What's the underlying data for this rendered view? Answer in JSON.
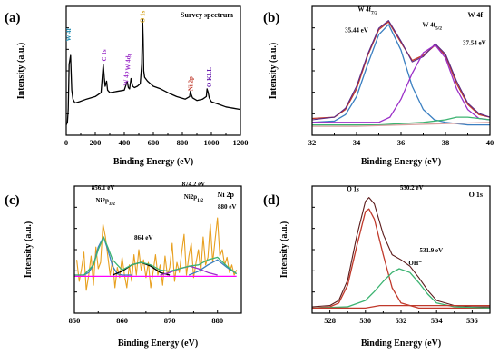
{
  "chart_data": [
    {
      "type": "line",
      "panel": "(a)",
      "title": "Survey spectrum",
      "xlabel": "Binding Energy (eV)",
      "ylabel": "Intensity (a.u.)",
      "xlim": [
        0,
        1200
      ],
      "xticks": [
        0,
        200,
        400,
        600,
        800,
        1000,
        1200
      ],
      "ylim": [
        0,
        1
      ],
      "series": [
        {
          "color": "#000000",
          "x": [
            0,
            8,
            14,
            20,
            30,
            38,
            46,
            60,
            90,
            140,
            200,
            240,
            255,
            262,
            268,
            278,
            285,
            300,
            350,
            400,
            420,
            428,
            436,
            446,
            458,
            470,
            490,
            510,
            520,
            526,
            530,
            534,
            540,
            560,
            600,
            650,
            700,
            760,
            820,
            850,
            855,
            860,
            870,
            900,
            940,
            965,
            970,
            978,
            985,
            1000,
            1050,
            1100,
            1150,
            1200
          ],
          "y": [
            0.08,
            0.1,
            0.2,
            0.55,
            0.62,
            0.35,
            0.28,
            0.25,
            0.26,
            0.28,
            0.3,
            0.33,
            0.55,
            0.45,
            0.38,
            0.42,
            0.35,
            0.33,
            0.34,
            0.35,
            0.42,
            0.37,
            0.36,
            0.44,
            0.38,
            0.37,
            0.38,
            0.4,
            0.55,
            0.9,
            0.75,
            0.5,
            0.45,
            0.42,
            0.38,
            0.36,
            0.33,
            0.3,
            0.28,
            0.3,
            0.34,
            0.32,
            0.29,
            0.27,
            0.28,
            0.3,
            0.36,
            0.33,
            0.29,
            0.26,
            0.24,
            0.22,
            0.21,
            0.2
          ]
        }
      ],
      "annotations": [
        {
          "label": "W 4f",
          "x": 30,
          "y": 0.78,
          "color": "#1f8bb0",
          "rotate": true
        },
        {
          "label": "C 1s",
          "x": 276,
          "y": 0.62,
          "color": "#9b30c8",
          "rotate": true
        },
        {
          "label": "W 4p",
          "x": 428,
          "y": 0.44,
          "color": "#9b30c8",
          "rotate": true
        },
        {
          "label": "W 4d",
          "x": 440,
          "y": 0.56,
          "color": "#9b30c8",
          "rotate": true
        },
        {
          "label": "3",
          "x": 456,
          "y": 0.62,
          "color": "#9b30c8",
          "rotate": true
        },
        {
          "label": "O 1s",
          "x": 540,
          "y": 0.92,
          "color": "#d4a017",
          "rotate": true
        },
        {
          "label": "Ni 2p",
          "x": 872,
          "y": 0.4,
          "color": "#c0392b",
          "rotate": true
        },
        {
          "label": "O KLL",
          "x": 1000,
          "y": 0.45,
          "color": "#6a1fb0",
          "rotate": true
        }
      ]
    },
    {
      "type": "line",
      "panel": "(b)",
      "title": "W 4f",
      "xlabel": "Binding Energy (eV)",
      "ylabel": "Intensity (a.u.)",
      "xlim": [
        32,
        40
      ],
      "xticks": [
        32,
        34,
        36,
        38,
        40
      ],
      "ylim": [
        0,
        1
      ],
      "series": [
        {
          "role": "fit-envelope",
          "color": "#c0392b",
          "x": [
            32,
            33,
            33.5,
            34,
            34.5,
            35,
            35.44,
            36,
            36.5,
            37,
            37.54,
            38,
            38.5,
            39,
            39.5,
            40
          ],
          "y": [
            0.13,
            0.14,
            0.2,
            0.36,
            0.62,
            0.82,
            0.88,
            0.72,
            0.58,
            0.62,
            0.7,
            0.62,
            0.4,
            0.24,
            0.16,
            0.14
          ]
        },
        {
          "role": "raw",
          "color": "#5b2a86",
          "x": [
            32,
            33,
            33.5,
            34,
            34.5,
            35,
            35.44,
            36,
            36.5,
            37,
            37.54,
            38,
            38.5,
            39,
            39.5,
            40
          ],
          "y": [
            0.12,
            0.14,
            0.21,
            0.38,
            0.63,
            0.83,
            0.89,
            0.73,
            0.57,
            0.61,
            0.71,
            0.63,
            0.42,
            0.25,
            0.17,
            0.14
          ]
        },
        {
          "role": "component",
          "name": "W 4f7/2",
          "color": "#3a7fc1",
          "x": [
            32,
            33,
            33.5,
            34,
            34.5,
            35,
            35.44,
            36,
            36.5,
            37,
            37.5,
            38,
            38.5,
            39,
            40
          ],
          "y": [
            0.1,
            0.11,
            0.16,
            0.3,
            0.55,
            0.78,
            0.86,
            0.66,
            0.38,
            0.2,
            0.12,
            0.1,
            0.09,
            0.08,
            0.08
          ]
        },
        {
          "role": "component",
          "name": "W 4f5/2",
          "color": "#9b30c8",
          "x": [
            32,
            34,
            35,
            35.5,
            36,
            36.5,
            37,
            37.54,
            38,
            38.5,
            39,
            39.5,
            40
          ],
          "y": [
            0.1,
            0.1,
            0.1,
            0.14,
            0.28,
            0.48,
            0.64,
            0.7,
            0.6,
            0.36,
            0.2,
            0.13,
            0.12
          ]
        },
        {
          "role": "component",
          "color": "#3cb371",
          "x": [
            32,
            35,
            36,
            37,
            38,
            38.5,
            39,
            39.5,
            40
          ],
          "y": [
            0.08,
            0.08,
            0.09,
            0.1,
            0.12,
            0.14,
            0.14,
            0.13,
            0.12
          ]
        },
        {
          "role": "background",
          "color": "#d9a0a0",
          "x": [
            32,
            34,
            36,
            38,
            40
          ],
          "y": [
            0.07,
            0.07,
            0.08,
            0.09,
            0.1
          ]
        }
      ],
      "annotations": [
        {
          "label": "W 4f",
          "sub": "7/2",
          "x": 34.5,
          "y": 0.96,
          "color": "#000000"
        },
        {
          "label": "35.44 eV",
          "x": 34.0,
          "y": 0.8,
          "color": "#000000"
        },
        {
          "label": "W 4f",
          "sub": "5/2",
          "x": 37.4,
          "y": 0.84,
          "color": "#000000"
        },
        {
          "label": "37.54 eV",
          "x": 39.3,
          "y": 0.7,
          "color": "#000000"
        }
      ]
    },
    {
      "type": "line",
      "panel": "(c)",
      "title": "Ni 2p",
      "xlabel": "Binding Energy (eV)",
      "ylabel": "Intensity (a.u.)",
      "xlim": [
        850,
        885
      ],
      "xticks": [
        850,
        860,
        870,
        880
      ],
      "ylim": [
        0,
        1
      ],
      "series": [
        {
          "role": "raw",
          "color": "#e8a020",
          "x": [
            850.5,
            851,
            851.5,
            852,
            852.5,
            853,
            853.5,
            854,
            854.5,
            855,
            855.5,
            856,
            856.5,
            857,
            857.5,
            858,
            858.5,
            859,
            859.5,
            860,
            860.5,
            861,
            861.5,
            862,
            862.5,
            863,
            863.5,
            864,
            864.5,
            865,
            865.5,
            866,
            866.5,
            867,
            867.5,
            868,
            868.5,
            869,
            869.5,
            870,
            870.5,
            871,
            871.5,
            872,
            872.5,
            873,
            873.5,
            874,
            874.5,
            875,
            875.5,
            876,
            876.5,
            877,
            877.5,
            878,
            878.5,
            879,
            879.5,
            880,
            880.5,
            881,
            881.5,
            882,
            882.5,
            883,
            883.5,
            884
          ],
          "y": [
            0.42,
            0.25,
            0.35,
            0.48,
            0.18,
            0.3,
            0.45,
            0.22,
            0.52,
            0.35,
            0.4,
            0.7,
            0.6,
            0.45,
            0.3,
            0.42,
            0.2,
            0.36,
            0.28,
            0.44,
            0.3,
            0.2,
            0.38,
            0.25,
            0.46,
            0.3,
            0.5,
            0.34,
            0.42,
            0.28,
            0.4,
            0.2,
            0.32,
            0.46,
            0.3,
            0.38,
            0.22,
            0.45,
            0.3,
            0.36,
            0.55,
            0.25,
            0.4,
            0.32,
            0.48,
            0.62,
            0.3,
            0.45,
            0.55,
            0.28,
            0.4,
            0.5,
            0.32,
            0.6,
            0.38,
            0.44,
            0.7,
            0.4,
            0.58,
            0.75,
            0.45,
            0.5,
            0.38,
            0.44,
            0.32,
            0.38,
            0.3,
            0.34
          ]
        },
        {
          "role": "component",
          "color": "#3a7fc1",
          "x": [
            850,
            852,
            853,
            854,
            855,
            856.1,
            857,
            858,
            859,
            860,
            862
          ],
          "y": [
            0.3,
            0.3,
            0.32,
            0.38,
            0.52,
            0.6,
            0.5,
            0.37,
            0.31,
            0.3,
            0.3
          ]
        },
        {
          "role": "component",
          "color": "#000000",
          "x": [
            858,
            860,
            862,
            864,
            866,
            868,
            870
          ],
          "y": [
            0.3,
            0.33,
            0.38,
            0.4,
            0.37,
            0.32,
            0.3
          ]
        },
        {
          "role": "component",
          "color": "#9b30c8",
          "x": [
            868,
            870,
            872,
            874.2,
            876,
            878,
            880
          ],
          "y": [
            0.3,
            0.32,
            0.35,
            0.37,
            0.35,
            0.32,
            0.3
          ]
        },
        {
          "role": "component",
          "color": "#3a7fc1",
          "x": [
            874,
            876,
            878,
            880,
            882,
            884
          ],
          "y": [
            0.3,
            0.33,
            0.38,
            0.42,
            0.36,
            0.31
          ]
        },
        {
          "role": "fit-envelope",
          "color": "#3cb371",
          "x": [
            850,
            852,
            854,
            855,
            856.1,
            857,
            858,
            860,
            862,
            864,
            866,
            868,
            870,
            872,
            874,
            876,
            878,
            880,
            882,
            884
          ],
          "y": [
            0.3,
            0.3,
            0.38,
            0.5,
            0.6,
            0.52,
            0.42,
            0.34,
            0.38,
            0.4,
            0.38,
            0.34,
            0.33,
            0.35,
            0.37,
            0.38,
            0.42,
            0.44,
            0.37,
            0.31
          ]
        },
        {
          "role": "background",
          "color": "#ff00ff",
          "x": [
            850,
            884
          ],
          "y": [
            0.29,
            0.29
          ]
        }
      ],
      "annotations": [
        {
          "label": "856.1 eV",
          "x": 856.0,
          "y": 0.97,
          "color": "#000000"
        },
        {
          "label": "Ni2p",
          "sub": "3/2",
          "x": 856.5,
          "y": 0.87,
          "color": "#000000"
        },
        {
          "label": "864 eV",
          "x": 864.5,
          "y": 0.58,
          "color": "#000000"
        },
        {
          "label": "874.2 eV",
          "x": 875.0,
          "y": 1.0,
          "color": "#000000"
        },
        {
          "label": "Ni2p",
          "sub": "1/2",
          "x": 875.0,
          "y": 0.9,
          "color": "#000000"
        },
        {
          "label": "880 eV",
          "x": 882.0,
          "y": 0.82,
          "color": "#000000"
        }
      ]
    },
    {
      "type": "line",
      "panel": "(d)",
      "title": "O 1s",
      "xlabel": "Binding Energy (eV)",
      "ylabel": "Intensity (a.u.)",
      "xlim": [
        527,
        537
      ],
      "xticks": [
        528,
        530,
        532,
        534,
        536
      ],
      "ylim": [
        0,
        1
      ],
      "series": [
        {
          "role": "raw",
          "color": "#5a1a1a",
          "x": [
            527,
            528,
            528.5,
            529,
            529.5,
            530,
            530.2,
            530.5,
            531,
            531.5,
            532,
            532.5,
            533,
            533.5,
            534,
            535,
            536,
            537
          ],
          "y": [
            0.05,
            0.06,
            0.1,
            0.26,
            0.6,
            0.88,
            0.91,
            0.86,
            0.62,
            0.46,
            0.42,
            0.37,
            0.28,
            0.18,
            0.1,
            0.06,
            0.05,
            0.05
          ]
        },
        {
          "role": "component",
          "name": "O 1s",
          "color": "#c0392b",
          "x": [
            527,
            528,
            528.5,
            529,
            529.5,
            530,
            530.2,
            530.5,
            531,
            531.5,
            532,
            533,
            537
          ],
          "y": [
            0.04,
            0.05,
            0.08,
            0.22,
            0.52,
            0.8,
            0.82,
            0.74,
            0.46,
            0.2,
            0.08,
            0.04,
            0.04
          ]
        },
        {
          "role": "component",
          "name": "OH⁻",
          "color": "#3cb371",
          "x": [
            527,
            529,
            530,
            530.5,
            531,
            531.5,
            531.9,
            532.5,
            533,
            533.5,
            534,
            535,
            537
          ],
          "y": [
            0.04,
            0.05,
            0.1,
            0.17,
            0.25,
            0.32,
            0.35,
            0.32,
            0.24,
            0.15,
            0.08,
            0.05,
            0.04
          ]
        },
        {
          "role": "background",
          "color": "#c0392b",
          "x": [
            527,
            530,
            530.8,
            532,
            537
          ],
          "y": [
            0.04,
            0.04,
            0.06,
            0.06,
            0.06
          ]
        }
      ],
      "annotations": [
        {
          "label": "O 1s",
          "x": 529.3,
          "y": 0.96,
          "color": "#000000"
        },
        {
          "label": "530.2 eV",
          "x": 532.6,
          "y": 0.97,
          "color": "#000000"
        },
        {
          "label": "531.9 eV",
          "x": 533.7,
          "y": 0.48,
          "color": "#000000"
        },
        {
          "label": "OH⁻",
          "x": 532.8,
          "y": 0.38,
          "color": "#000000"
        }
      ]
    }
  ]
}
